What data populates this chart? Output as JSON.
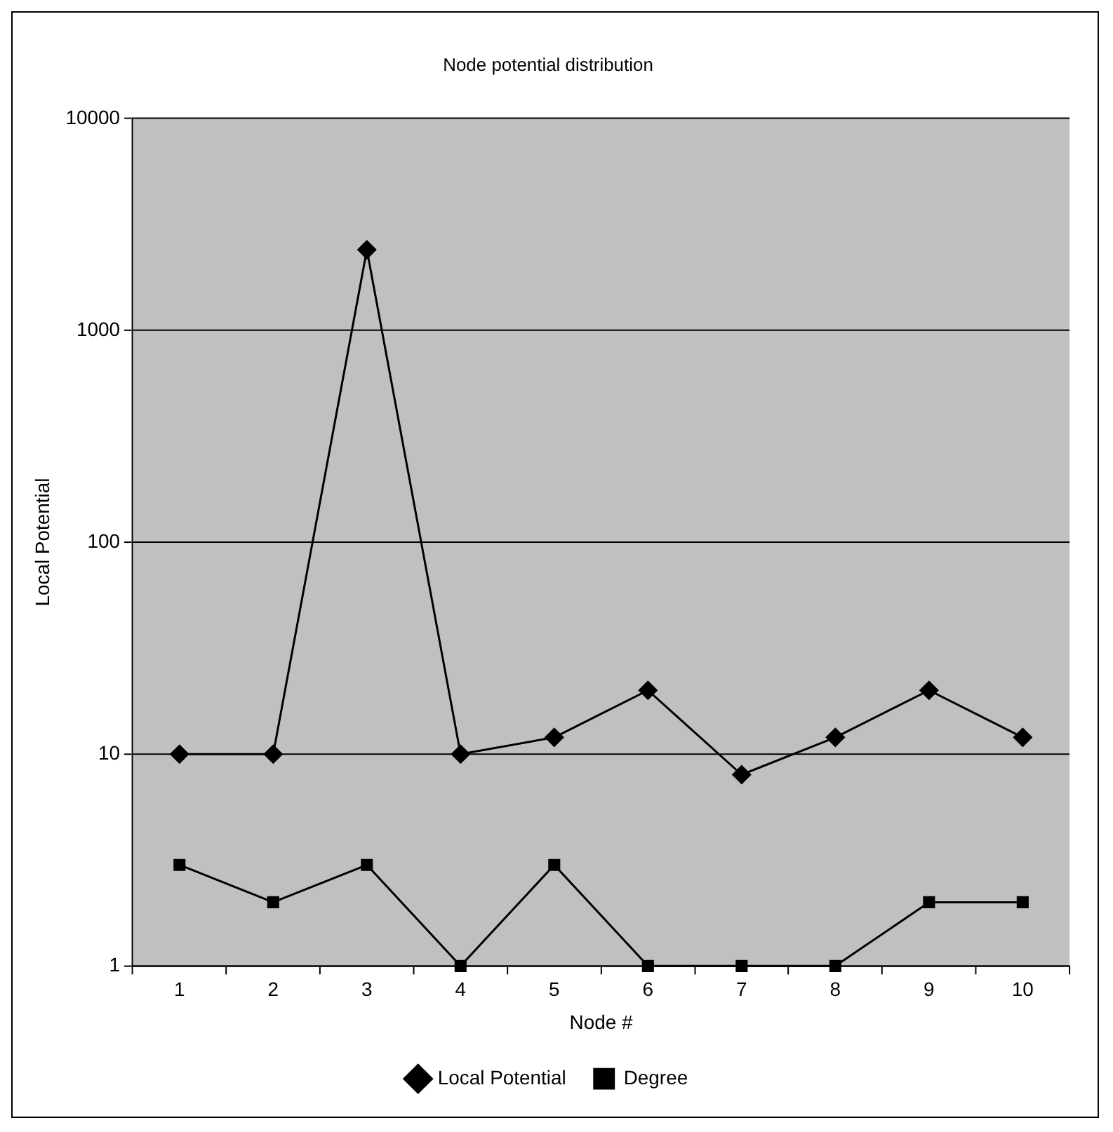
{
  "chart_data": {
    "type": "line",
    "title": "Node potential distribution",
    "xlabel": "Node #",
    "ylabel": "Local Potential",
    "categories": [
      "1",
      "2",
      "3",
      "4",
      "5",
      "6",
      "7",
      "8",
      "9",
      "10"
    ],
    "series": [
      {
        "name": "Local Potential",
        "color": "#000000",
        "marker": "diamond",
        "values": [
          10,
          10,
          2400,
          10,
          12,
          20,
          8,
          12,
          20,
          12
        ]
      },
      {
        "name": "Degree",
        "color": "#000000",
        "marker": "square",
        "values": [
          3,
          2,
          3,
          1,
          3,
          1,
          1,
          1,
          2,
          2
        ]
      }
    ],
    "log": true,
    "ylim": [
      1,
      10000
    ],
    "yticks": [
      1,
      10,
      100,
      1000,
      10000
    ],
    "grid": "y",
    "legend": "bottom"
  }
}
